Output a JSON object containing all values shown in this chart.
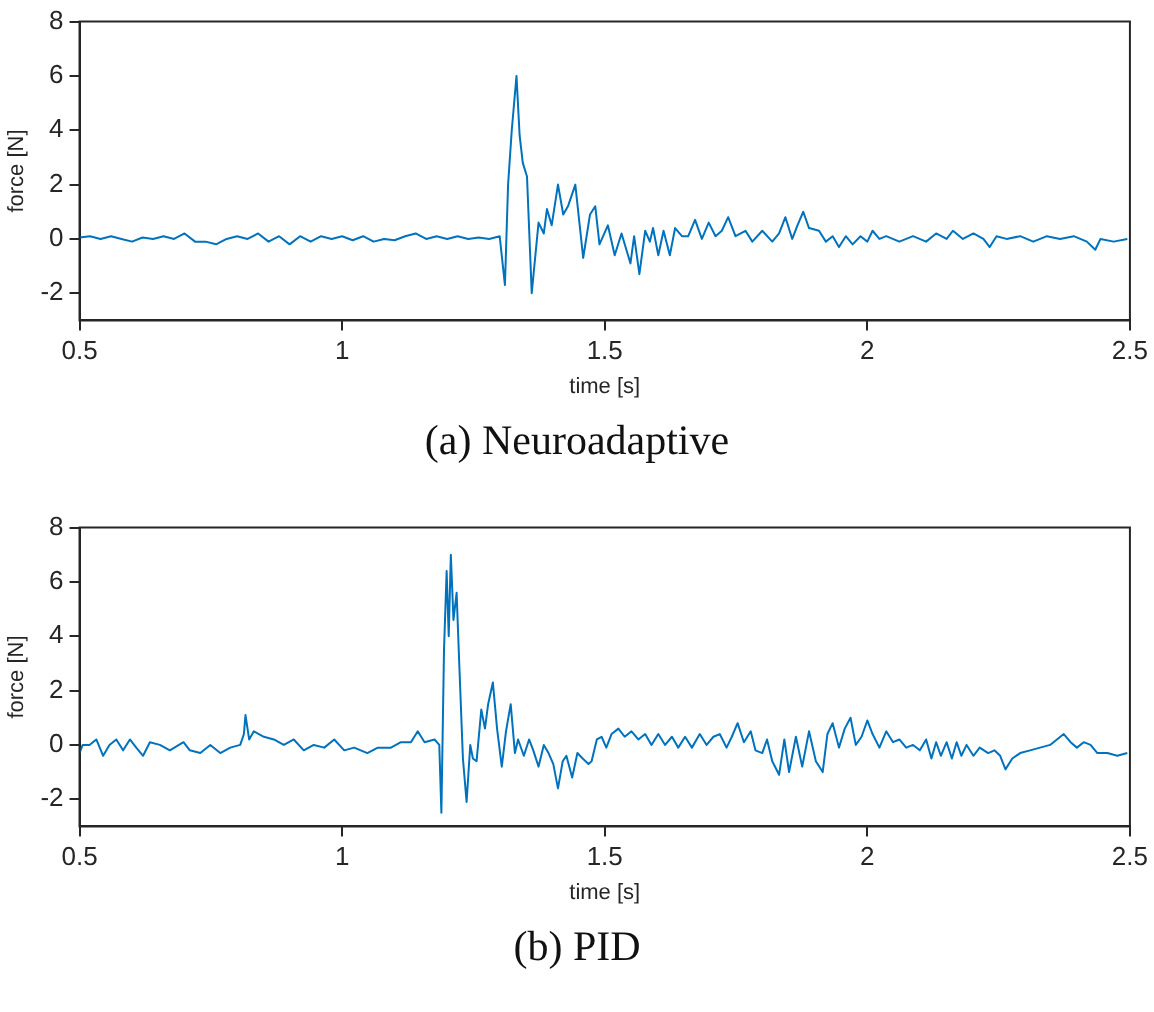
{
  "chart_data": [
    {
      "type": "line",
      "xlabel": "time [s]",
      "ylabel": "force [N]",
      "annotations": [
        "(a) Neuroadaptive"
      ],
      "xlim": [
        0.5,
        2.5
      ],
      "xticks": [
        0.5,
        1,
        1.5,
        2,
        2.5
      ],
      "ylim": [
        -3,
        8
      ],
      "yticks": [
        -2,
        0,
        2,
        4,
        6,
        8
      ],
      "series": [
        {
          "color": "#0072bd",
          "x": [
            0.5,
            0.52,
            0.54,
            0.56,
            0.58,
            0.6,
            0.62,
            0.64,
            0.66,
            0.68,
            0.7,
            0.72,
            0.74,
            0.76,
            0.78,
            0.8,
            0.82,
            0.84,
            0.86,
            0.88,
            0.9,
            0.92,
            0.94,
            0.96,
            0.98,
            1.0,
            1.02,
            1.04,
            1.06,
            1.08,
            1.1,
            1.12,
            1.14,
            1.16,
            1.18,
            1.2,
            1.22,
            1.24,
            1.26,
            1.28,
            1.3,
            1.31,
            1.316,
            1.323,
            1.332,
            1.338,
            1.344,
            1.352,
            1.361,
            1.374,
            1.384,
            1.39,
            1.399,
            1.411,
            1.421,
            1.43,
            1.444,
            1.459,
            1.472,
            1.482,
            1.49,
            1.506,
            1.519,
            1.532,
            1.549,
            1.556,
            1.566,
            1.577,
            1.586,
            1.592,
            1.602,
            1.612,
            1.624,
            1.634,
            1.647,
            1.659,
            1.672,
            1.685,
            1.698,
            1.711,
            1.723,
            1.735,
            1.749,
            1.768,
            1.781,
            1.8,
            1.819,
            1.832,
            1.844,
            1.857,
            1.867,
            1.878,
            1.889,
            1.908,
            1.921,
            1.934,
            1.946,
            1.959,
            1.972,
            1.987,
            2.0,
            2.01,
            2.023,
            2.036,
            2.061,
            2.087,
            2.112,
            2.131,
            2.151,
            2.163,
            2.182,
            2.202,
            2.221,
            2.233,
            2.246,
            2.265,
            2.291,
            2.316,
            2.342,
            2.367,
            2.393,
            2.418,
            2.434,
            2.444,
            2.469,
            2.495
          ],
          "values": [
            0.05,
            0.1,
            0.0,
            0.1,
            0.0,
            -0.1,
            0.05,
            0.0,
            0.1,
            0.0,
            0.2,
            -0.1,
            -0.1,
            -0.2,
            0.0,
            0.1,
            0.0,
            0.2,
            -0.1,
            0.1,
            -0.2,
            0.1,
            -0.1,
            0.1,
            0.0,
            0.1,
            -0.05,
            0.1,
            -0.1,
            0.0,
            -0.05,
            0.1,
            0.2,
            0.0,
            0.1,
            0.0,
            0.1,
            0.0,
            0.05,
            0.0,
            0.1,
            -1.7,
            2.0,
            4.0,
            6.0,
            3.8,
            2.8,
            2.3,
            -2.0,
            0.6,
            0.2,
            1.1,
            0.5,
            2.0,
            0.9,
            1.2,
            2.0,
            -0.7,
            0.9,
            1.2,
            -0.2,
            0.5,
            -0.6,
            0.2,
            -0.9,
            0.1,
            -1.3,
            0.3,
            -0.1,
            0.4,
            -0.6,
            0.3,
            -0.6,
            0.4,
            0.1,
            0.1,
            0.7,
            0.0,
            0.6,
            0.1,
            0.3,
            0.8,
            0.1,
            0.3,
            -0.1,
            0.3,
            -0.1,
            0.2,
            0.8,
            0.0,
            0.5,
            1.0,
            0.4,
            0.3,
            -0.1,
            0.1,
            -0.3,
            0.1,
            -0.2,
            0.1,
            -0.1,
            0.3,
            0.0,
            0.1,
            -0.1,
            0.1,
            -0.1,
            0.2,
            0.0,
            0.3,
            0.0,
            0.2,
            0.0,
            -0.3,
            0.1,
            0.0,
            0.1,
            -0.1,
            0.1,
            0.0,
            0.1,
            -0.1,
            -0.4,
            0.0,
            -0.1,
            0.0
          ]
        }
      ]
    },
    {
      "type": "line",
      "xlabel": "time [s]",
      "ylabel": "force [N]",
      "annotations": [
        "(b) PID"
      ],
      "xlim": [
        0.5,
        2.5
      ],
      "xticks": [
        0.5,
        1,
        1.5,
        2,
        2.5
      ],
      "ylim": [
        -3,
        8
      ],
      "yticks": [
        -2,
        0,
        2,
        4,
        6,
        8
      ],
      "series": [
        {
          "color": "#0072bd",
          "x": [
            0.5,
            0.506,
            0.519,
            0.532,
            0.545,
            0.557,
            0.57,
            0.583,
            0.596,
            0.608,
            0.621,
            0.634,
            0.653,
            0.672,
            0.698,
            0.71,
            0.73,
            0.749,
            0.768,
            0.787,
            0.806,
            0.813,
            0.816,
            0.823,
            0.832,
            0.851,
            0.87,
            0.889,
            0.908,
            0.927,
            0.946,
            0.966,
            0.985,
            1.004,
            1.023,
            1.048,
            1.068,
            1.093,
            1.112,
            1.131,
            1.144,
            1.157,
            1.176,
            1.185,
            1.189,
            1.194,
            1.199,
            1.203,
            1.207,
            1.212,
            1.218,
            1.223,
            1.23,
            1.237,
            1.244,
            1.249,
            1.256,
            1.265,
            1.272,
            1.278,
            1.287,
            1.295,
            1.304,
            1.312,
            1.321,
            1.329,
            1.335,
            1.346,
            1.356,
            1.364,
            1.374,
            1.384,
            1.393,
            1.402,
            1.411,
            1.42,
            1.427,
            1.438,
            1.448,
            1.458,
            1.469,
            1.475,
            1.485,
            1.494,
            1.503,
            1.513,
            1.526,
            1.538,
            1.551,
            1.564,
            1.577,
            1.589,
            1.602,
            1.615,
            1.628,
            1.64,
            1.653,
            1.666,
            1.681,
            1.694,
            1.707,
            1.719,
            1.732,
            1.742,
            1.753,
            1.765,
            1.778,
            1.787,
            1.8,
            1.809,
            1.819,
            1.832,
            1.842,
            1.851,
            1.864,
            1.876,
            1.889,
            1.902,
            1.915,
            1.924,
            1.934,
            1.946,
            1.957,
            1.968,
            1.978,
            1.989,
            2.0,
            2.01,
            2.023,
            2.036,
            2.049,
            2.061,
            2.074,
            2.087,
            2.1,
            2.112,
            2.122,
            2.131,
            2.14,
            2.151,
            2.161,
            2.17,
            2.179,
            2.189,
            2.202,
            2.214,
            2.23,
            2.242,
            2.253,
            2.263,
            2.276,
            2.291,
            2.31,
            2.329,
            2.348,
            2.361,
            2.374,
            2.387,
            2.399,
            2.412,
            2.425,
            2.438,
            2.457,
            2.476,
            2.495
          ],
          "values": [
            -0.3,
            0.0,
            0.0,
            0.2,
            -0.4,
            0.0,
            0.2,
            -0.2,
            0.2,
            -0.1,
            -0.4,
            0.1,
            0.0,
            -0.2,
            0.1,
            -0.2,
            -0.3,
            0.0,
            -0.3,
            -0.1,
            0.0,
            0.4,
            1.1,
            0.2,
            0.5,
            0.3,
            0.2,
            0.0,
            0.2,
            -0.2,
            0.0,
            -0.1,
            0.2,
            -0.2,
            -0.1,
            -0.3,
            -0.1,
            -0.1,
            0.1,
            0.1,
            0.5,
            0.1,
            0.2,
            0.0,
            -2.5,
            3.5,
            6.4,
            4.0,
            7.0,
            4.6,
            5.6,
            3.0,
            -0.5,
            -2.1,
            0.0,
            -0.5,
            -0.6,
            1.3,
            0.6,
            1.5,
            2.3,
            0.6,
            -0.8,
            0.5,
            1.5,
            -0.3,
            0.2,
            -0.4,
            0.2,
            -0.2,
            -0.8,
            0.0,
            -0.3,
            -0.7,
            -1.6,
            -0.6,
            -0.4,
            -1.2,
            -0.3,
            -0.5,
            -0.7,
            -0.6,
            0.2,
            0.3,
            -0.1,
            0.4,
            0.6,
            0.3,
            0.5,
            0.2,
            0.4,
            0.0,
            0.4,
            0.0,
            0.3,
            -0.1,
            0.3,
            -0.1,
            0.4,
            0.0,
            0.3,
            0.4,
            -0.1,
            0.3,
            0.8,
            0.1,
            0.5,
            -0.2,
            -0.3,
            0.2,
            -0.6,
            -1.1,
            0.2,
            -1.0,
            0.3,
            -0.8,
            0.5,
            -0.6,
            -1.0,
            0.4,
            0.8,
            -0.1,
            0.6,
            1.0,
            0.0,
            0.3,
            0.9,
            0.4,
            -0.1,
            0.5,
            0.1,
            0.2,
            -0.1,
            0.0,
            -0.2,
            0.2,
            -0.5,
            0.1,
            -0.4,
            0.1,
            -0.5,
            0.1,
            -0.4,
            0.0,
            -0.4,
            -0.1,
            -0.3,
            -0.2,
            -0.4,
            -0.9,
            -0.5,
            -0.3,
            -0.2,
            -0.1,
            0.0,
            0.2,
            0.4,
            0.1,
            -0.1,
            0.1,
            0.0,
            -0.3,
            -0.3,
            -0.4,
            -0.3
          ]
        }
      ]
    }
  ]
}
